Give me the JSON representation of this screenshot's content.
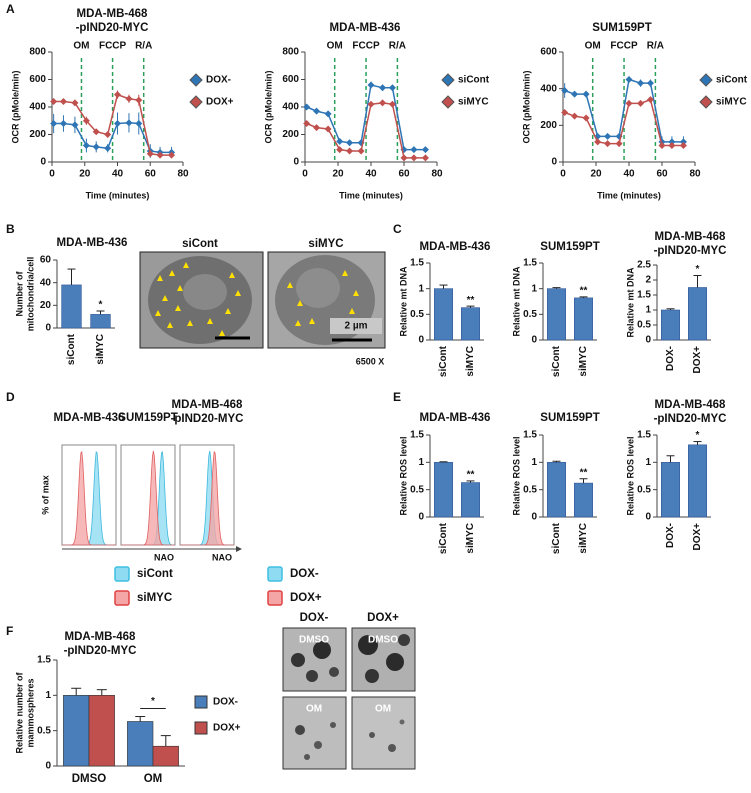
{
  "panels": [
    "A",
    "B",
    "C",
    "D",
    "E",
    "F"
  ],
  "chart_data": [
    {
      "type": "line",
      "title": [
        "MDA-MB-468",
        "-pIND20-MYC"
      ],
      "x_label": "Time (minutes)",
      "y_label": [
        "OCR (pMole/min)"
      ],
      "x": [
        1,
        7,
        14,
        21,
        27,
        34,
        40,
        47,
        53,
        60,
        66,
        73
      ],
      "xlim": [
        0,
        80
      ],
      "xticks": [
        0,
        20,
        40,
        60,
        80
      ],
      "ylim": [
        0,
        800
      ],
      "yticks": [
        0,
        200,
        400,
        600,
        800
      ],
      "injections": [
        {
          "label": "OM",
          "x": 18
        },
        {
          "label": "FCCP",
          "x": 37
        },
        {
          "label": "R/A",
          "x": 56
        }
      ],
      "series": [
        {
          "name": "DOX-",
          "color": "#2e75b6",
          "values": [
            280,
            280,
            270,
            120,
            110,
            100,
            280,
            285,
            280,
            80,
            70,
            70
          ],
          "errors": [
            70,
            60,
            60,
            50,
            40,
            30,
            80,
            70,
            80,
            50,
            40,
            40
          ]
        },
        {
          "name": "DOX+",
          "color": "#c0504d",
          "values": [
            440,
            440,
            430,
            300,
            220,
            200,
            490,
            460,
            450,
            60,
            50,
            50
          ],
          "errors": [
            10,
            10,
            10,
            30,
            20,
            10,
            30,
            30,
            40,
            20,
            10,
            10
          ]
        }
      ]
    },
    {
      "type": "line",
      "title": [
        "MDA-MB-436"
      ],
      "x_label": "Time (minutes)",
      "y_label": [
        "OCR (pMole/min)"
      ],
      "x": [
        1,
        7,
        14,
        21,
        27,
        34,
        40,
        47,
        53,
        60,
        66,
        73
      ],
      "xlim": [
        0,
        80
      ],
      "xticks": [
        0,
        20,
        40,
        60,
        80
      ],
      "ylim": [
        0,
        800
      ],
      "yticks": [
        0,
        200,
        400,
        600,
        800
      ],
      "injections": [
        {
          "label": "OM",
          "x": 18
        },
        {
          "label": "FCCP",
          "x": 37
        },
        {
          "label": "R/A",
          "x": 56
        }
      ],
      "series": [
        {
          "name": "siCont",
          "color": "#2e75b6",
          "values": [
            400,
            370,
            350,
            150,
            140,
            140,
            560,
            540,
            540,
            90,
            90,
            90
          ],
          "errors": [
            10,
            10,
            10,
            10,
            10,
            10,
            25,
            15,
            15,
            10,
            10,
            10
          ]
        },
        {
          "name": "siMYC",
          "color": "#c0504d",
          "values": [
            280,
            250,
            240,
            90,
            80,
            80,
            420,
            430,
            420,
            30,
            30,
            30
          ],
          "errors": [
            10,
            10,
            10,
            10,
            10,
            10,
            20,
            20,
            20,
            5,
            5,
            5
          ]
        }
      ]
    },
    {
      "type": "line",
      "title": [
        "SUM159PT"
      ],
      "x_label": "Time (minutes)",
      "y_label": [
        "OCR (pMole/min)"
      ],
      "x": [
        1,
        7,
        14,
        21,
        27,
        34,
        40,
        47,
        53,
        60,
        66,
        73
      ],
      "xlim": [
        0,
        80
      ],
      "xticks": [
        0,
        20,
        40,
        60,
        80
      ],
      "ylim": [
        0,
        600
      ],
      "yticks": [
        0,
        200,
        400,
        600
      ],
      "injections": [
        {
          "label": "OM",
          "x": 18
        },
        {
          "label": "FCCP",
          "x": 37
        },
        {
          "label": "R/A",
          "x": 56
        }
      ],
      "series": [
        {
          "name": "siCont",
          "color": "#2e75b6",
          "values": [
            390,
            370,
            370,
            140,
            140,
            140,
            450,
            430,
            430,
            110,
            110,
            110
          ],
          "errors": [
            40,
            15,
            15,
            15,
            10,
            10,
            15,
            20,
            20,
            30,
            30,
            30
          ]
        },
        {
          "name": "siMYC",
          "color": "#c0504d",
          "values": [
            270,
            250,
            240,
            110,
            100,
            100,
            320,
            320,
            340,
            90,
            90,
            90
          ],
          "errors": [
            15,
            10,
            10,
            10,
            10,
            10,
            10,
            10,
            15,
            10,
            10,
            10
          ]
        }
      ]
    },
    {
      "type": "bar",
      "title": [
        "MDA-MB-436"
      ],
      "y_label": [
        "Number of",
        "mitochondria/cell"
      ],
      "categories": [
        "siCont",
        "siMYC"
      ],
      "values": [
        38,
        12
      ],
      "errors": [
        14,
        3
      ],
      "color": "#4a7ebb",
      "ylim": [
        0,
        60
      ],
      "yticks": [
        0,
        20,
        40,
        60
      ],
      "annotations": [
        {
          "text": "*",
          "category": "siMYC"
        }
      ]
    },
    {
      "type": "bar",
      "title": [
        "MDA-MB-436"
      ],
      "y_label": [
        "Relative mt DNA"
      ],
      "categories": [
        "siCont",
        "siMYC"
      ],
      "values": [
        1,
        0.63
      ],
      "errors": [
        0.07,
        0.03
      ],
      "color": "#4a7ebb",
      "ylim": [
        0,
        1.5
      ],
      "yticks": [
        0,
        0.5,
        1,
        1.5
      ],
      "annotations": [
        {
          "text": "**",
          "category": "siMYC"
        }
      ]
    },
    {
      "type": "bar",
      "title": [
        "SUM159PT"
      ],
      "y_label": [
        "Relative mt DNA"
      ],
      "categories": [
        "siCont",
        "siMYC"
      ],
      "values": [
        1,
        0.82
      ],
      "errors": [
        0.02,
        0.02
      ],
      "color": "#4a7ebb",
      "ylim": [
        0,
        1.5
      ],
      "yticks": [
        0,
        0.5,
        1,
        1.5
      ],
      "annotations": [
        {
          "text": "**",
          "category": "siMYC"
        }
      ]
    },
    {
      "type": "bar",
      "title": [
        "MDA-MB-468",
        "-pIND20-MYC"
      ],
      "y_label": [
        "Relative mt DNA"
      ],
      "categories": [
        "DOX-",
        "DOX+"
      ],
      "values": [
        1,
        1.75
      ],
      "errors": [
        0.04,
        0.4
      ],
      "color": "#4a7ebb",
      "ylim": [
        0,
        2.5
      ],
      "yticks": [
        0,
        0.5,
        1,
        1.5,
        2,
        2.5
      ],
      "annotations": [
        {
          "text": "*",
          "category": "DOX+"
        }
      ]
    },
    {
      "type": "density",
      "titles": [
        [
          "MDA-MB-436"
        ],
        [
          "SUM159PT"
        ],
        [
          "MDA-MB-468",
          "-pIND20-MYC"
        ]
      ],
      "y_label": "% of max",
      "x_label": "NAO",
      "legends": [
        [
          {
            "name": "siCont",
            "color": "#8fdcf2"
          },
          {
            "name": "siMYC",
            "color": "#f4a6a6"
          }
        ],
        [
          {
            "name": "DOX-",
            "color": "#8fdcf2"
          },
          {
            "name": "DOX+",
            "color": "#f4a6a6"
          }
        ]
      ]
    },
    {
      "type": "bar",
      "title": [
        "MDA-MB-436"
      ],
      "y_label": [
        "Relative ROS level"
      ],
      "categories": [
        "siCont",
        "siMYC"
      ],
      "values": [
        1,
        0.63
      ],
      "errors": [
        0.01,
        0.03
      ],
      "color": "#4a7ebb",
      "ylim": [
        0,
        1.5
      ],
      "yticks": [
        0,
        0.5,
        1,
        1.5
      ],
      "annotations": [
        {
          "text": "**",
          "category": "siMYC"
        }
      ]
    },
    {
      "type": "bar",
      "title": [
        "SUM159PT"
      ],
      "y_label": [
        "Relative ROS level"
      ],
      "categories": [
        "siCont",
        "siMYC"
      ],
      "values": [
        1,
        0.62
      ],
      "errors": [
        0.02,
        0.08
      ],
      "color": "#4a7ebb",
      "ylim": [
        0,
        1.5
      ],
      "yticks": [
        0,
        0.5,
        1,
        1.5
      ],
      "annotations": [
        {
          "text": "**",
          "category": "siMYC"
        }
      ]
    },
    {
      "type": "bar",
      "title": [
        "MDA-MB-468",
        "-pIND20-MYC"
      ],
      "y_label": [
        "Relative ROS level"
      ],
      "categories": [
        "DOX-",
        "DOX+"
      ],
      "values": [
        1,
        1.32
      ],
      "errors": [
        0.12,
        0.06
      ],
      "color": "#4a7ebb",
      "ylim": [
        0,
        1.5
      ],
      "yticks": [
        0,
        0.5,
        1,
        1.5
      ],
      "annotations": [
        {
          "text": "*",
          "category": "DOX+"
        }
      ]
    },
    {
      "type": "grouped-bar",
      "title": [
        "MDA-MB-468",
        "-pIND20-MYC"
      ],
      "y_label": [
        "Relative number of",
        "mammospheres"
      ],
      "categories": [
        "DMSO",
        "OM"
      ],
      "ylim": [
        0,
        1.5
      ],
      "yticks": [
        0,
        0.5,
        1,
        1.5
      ],
      "series": [
        {
          "name": "DOX-",
          "color": "#4a7ebb",
          "values": [
            1,
            0.63
          ],
          "errors": [
            0.1,
            0.07
          ]
        },
        {
          "name": "DOX+",
          "color": "#c0504d",
          "values": [
            1,
            0.28
          ],
          "errors": [
            0.08,
            0.15
          ]
        }
      ],
      "annotations": [
        {
          "text": "*",
          "category": "OM"
        }
      ]
    }
  ],
  "micrographs": {
    "labels": [
      "siCont",
      "siMYC"
    ],
    "scale_bar": "2 µm",
    "magnification": "6500 X"
  },
  "sphere_images": {
    "columns": [
      "DOX-",
      "DOX+"
    ],
    "rows": [
      "DMSO",
      "OM"
    ]
  }
}
